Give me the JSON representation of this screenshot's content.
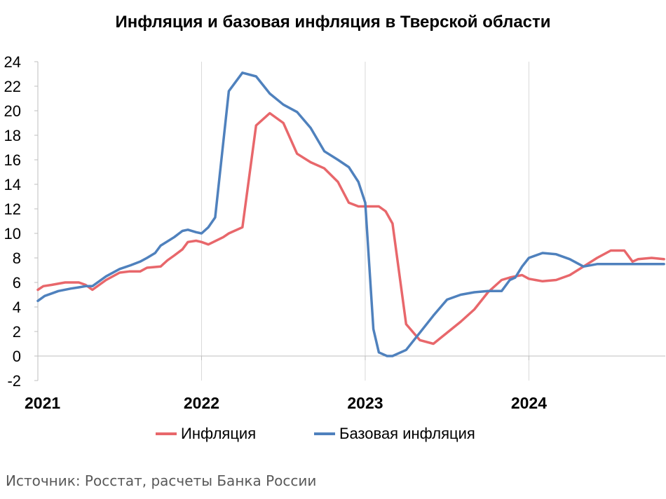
{
  "chart_data": {
    "type": "line",
    "title": "Инфляция и базовая инфляция в Тверской области",
    "ylim": [
      -2,
      24
    ],
    "yticks": [
      -2,
      0,
      2,
      4,
      6,
      8,
      10,
      12,
      14,
      16,
      18,
      20,
      22,
      24
    ],
    "xlim": [
      0,
      46
    ],
    "xticks": [
      {
        "x": 0,
        "label": "2021"
      },
      {
        "x": 12,
        "label": "2022"
      },
      {
        "x": 24,
        "label": "2023"
      },
      {
        "x": 36,
        "label": "2024"
      }
    ],
    "grid": "vertical",
    "legend_position": "bottom",
    "series": [
      {
        "name": "Инфляция",
        "color": "#e8676b",
        "x": [
          0,
          0.4,
          1,
          2,
          2.6,
          3,
          3.5,
          4,
          5,
          6,
          6.7,
          7.5,
          8,
          9,
          9.5,
          10,
          10.6,
          11,
          11.6,
          12,
          12.5,
          13.6,
          14,
          15,
          16,
          17,
          18,
          19,
          20,
          21,
          22,
          22.8,
          23.5,
          24,
          25,
          25.5,
          26,
          27,
          28,
          29,
          30,
          31,
          32,
          33,
          34,
          34.6,
          35,
          35.5,
          36,
          37,
          38,
          39,
          40,
          41,
          42,
          43,
          43.6,
          44,
          45,
          45.9
        ],
        "values": [
          5.4,
          5.7,
          5.8,
          6.0,
          6.0,
          6.0,
          5.8,
          5.4,
          6.2,
          6.8,
          6.9,
          6.9,
          7.2,
          7.3,
          7.8,
          8.2,
          8.7,
          9.3,
          9.4,
          9.3,
          9.1,
          9.7,
          10.0,
          10.5,
          18.8,
          19.8,
          19.0,
          16.5,
          15.8,
          15.3,
          14.2,
          12.5,
          12.2,
          12.2,
          12.2,
          11.8,
          10.8,
          2.6,
          1.3,
          1.0,
          1.9,
          2.8,
          3.8,
          5.2,
          6.2,
          6.4,
          6.5,
          6.6,
          6.3,
          6.1,
          6.2,
          6.6,
          7.3,
          8.0,
          8.6,
          8.6,
          7.7,
          7.9,
          8.0,
          7.9
        ]
      },
      {
        "name": "Базовая инфляция",
        "color": "#4f81bd",
        "x": [
          0,
          0.5,
          1,
          1.5,
          2.4,
          3,
          3.5,
          4,
          5,
          6,
          6.8,
          7.5,
          8,
          8.6,
          9,
          10,
          10.6,
          11,
          11.6,
          12,
          12.5,
          13,
          14,
          15,
          16,
          17,
          18,
          19,
          20,
          21,
          22,
          22.8,
          23.5,
          24,
          24.6,
          25,
          25.6,
          26,
          27,
          28,
          29,
          30,
          31,
          32,
          33,
          34,
          34.6,
          35,
          35.5,
          36,
          37,
          38,
          39,
          40,
          41,
          42,
          43,
          43.6,
          44,
          45,
          45.9
        ],
        "values": [
          4.5,
          4.9,
          5.1,
          5.3,
          5.5,
          5.6,
          5.7,
          5.7,
          6.5,
          7.1,
          7.4,
          7.7,
          8.0,
          8.4,
          9.0,
          9.7,
          10.2,
          10.3,
          10.1,
          10.0,
          10.5,
          11.3,
          21.6,
          23.1,
          22.8,
          21.4,
          20.5,
          19.9,
          18.6,
          16.7,
          16.0,
          15.4,
          14.2,
          12.5,
          2.2,
          0.3,
          0,
          0,
          0.5,
          1.9,
          3.3,
          4.6,
          5.0,
          5.2,
          5.3,
          5.3,
          6.2,
          6.4,
          7.3,
          8.0,
          8.4,
          8.3,
          7.9,
          7.3,
          7.5,
          7.5,
          7.5,
          7.5,
          7.5,
          7.5,
          7.5
        ]
      }
    ]
  },
  "source_note": "Источник: Росстат, расчеты Банка России"
}
